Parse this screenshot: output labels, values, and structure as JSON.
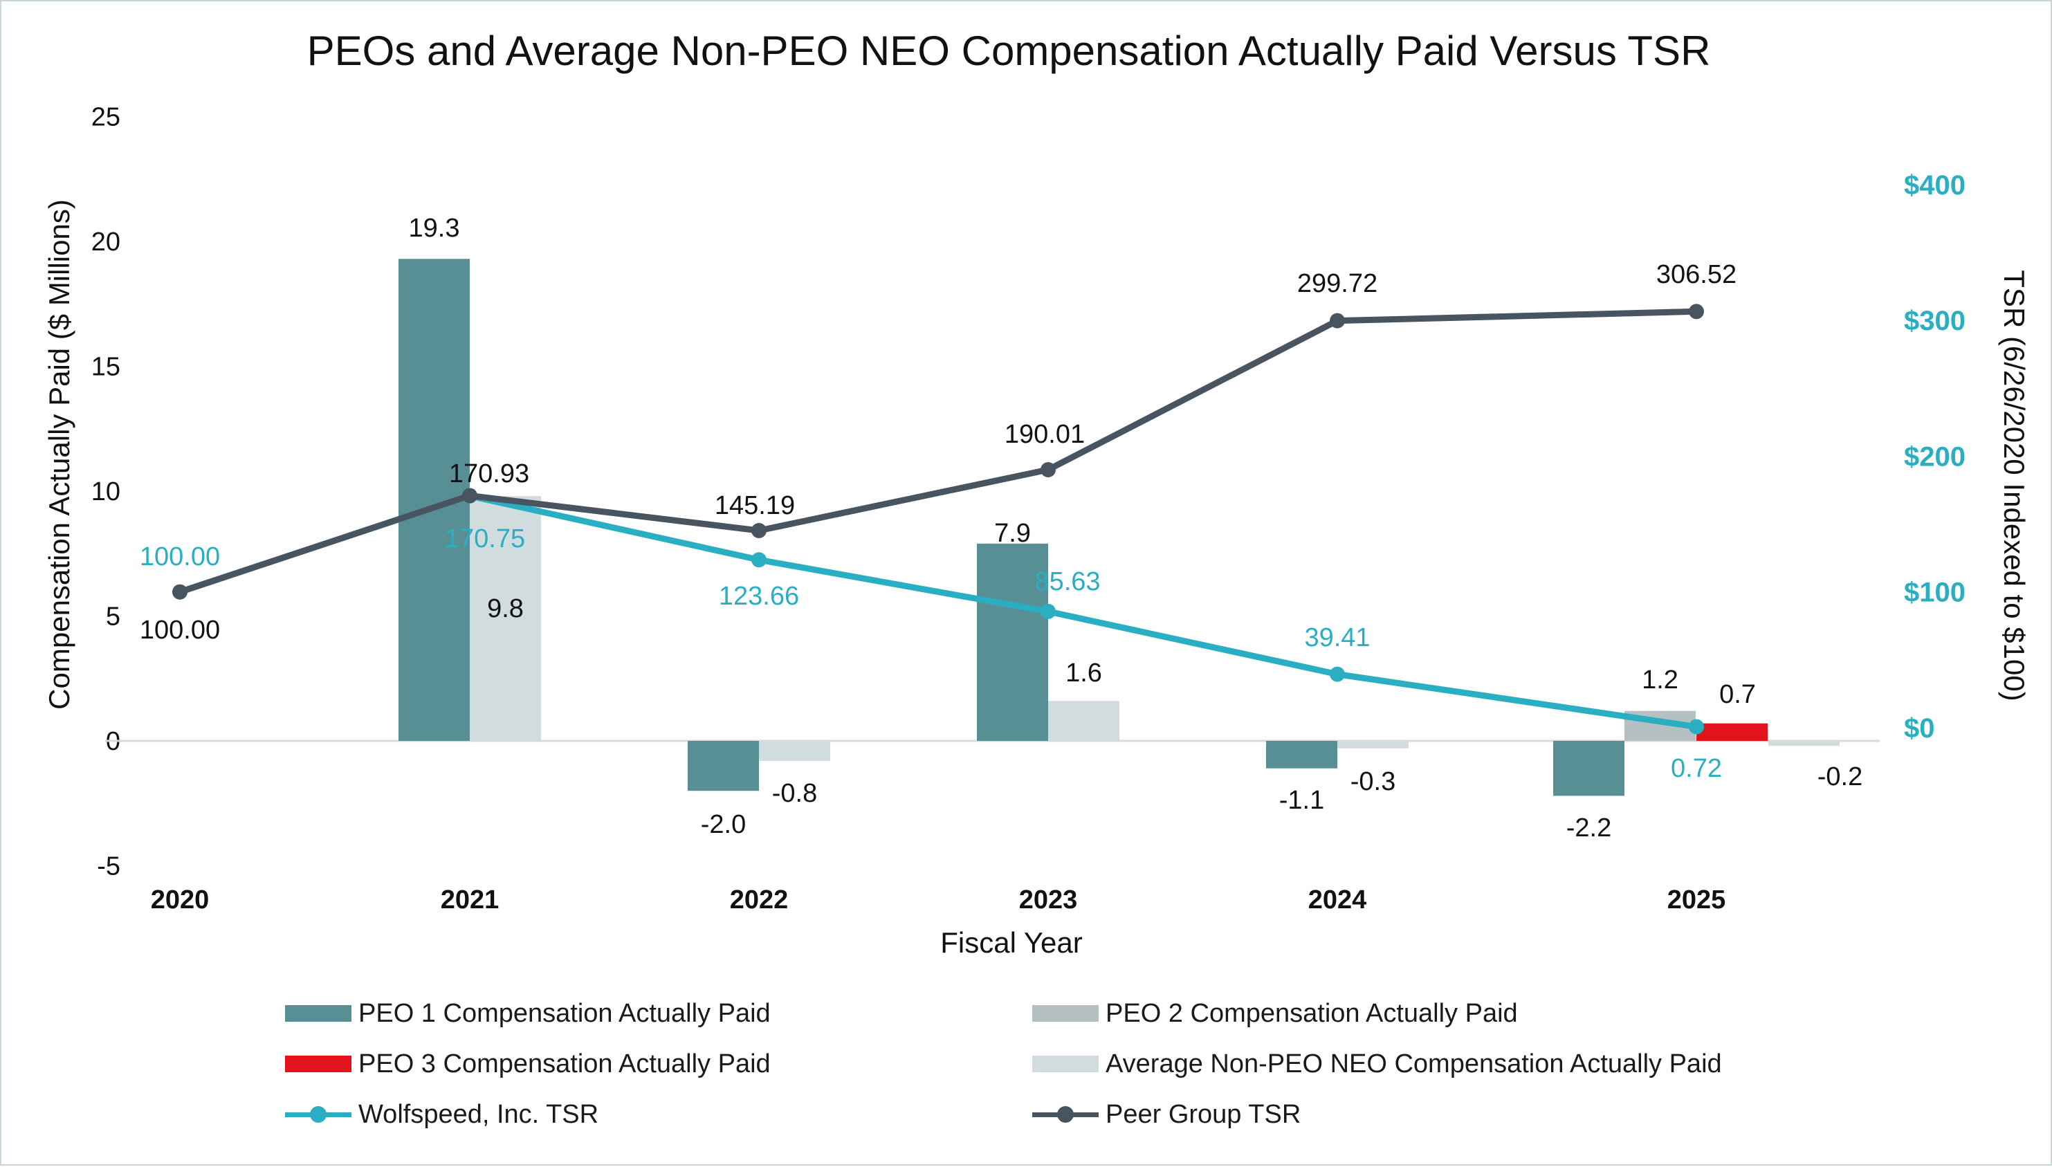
{
  "chart_data": {
    "type": "bar+line",
    "title": "PEOs and Average Non-PEO NEO Compensation Actually Paid Versus TSR",
    "xlabel": "Fiscal Year",
    "ylabel_left": "Compensation Actually Paid ($ Millions)",
    "ylabel_right": "TSR (6/26/2020 Indexed to $100)",
    "ylim_left": [
      -5,
      25
    ],
    "yticks_left": [
      -5,
      0,
      5,
      10,
      15,
      20,
      25
    ],
    "ylim_right": [
      0,
      400
    ],
    "yticks_right": [
      {
        "value": 0,
        "label": "$0"
      },
      {
        "value": 100,
        "label": "$100"
      },
      {
        "value": 200,
        "label": "$200"
      },
      {
        "value": 300,
        "label": "$300"
      },
      {
        "value": 400,
        "label": "$400"
      }
    ],
    "categories": [
      "2020",
      "2021",
      "2022",
      "2023",
      "2024",
      "2025"
    ],
    "bar_series": [
      {
        "name": "PEO 1 Compensation Actually Paid",
        "color": "#578f94",
        "values": [
          null,
          19.3,
          -2.0,
          7.9,
          -1.1,
          -2.2
        ],
        "labels": [
          null,
          "19.3",
          "-2.0",
          "7.9",
          "-1.1",
          "-2.2"
        ]
      },
      {
        "name": "PEO 2 Compensation Actually Paid",
        "color": "#b5c0c2",
        "values": [
          null,
          null,
          null,
          null,
          null,
          1.2
        ],
        "labels": [
          null,
          null,
          null,
          null,
          null,
          "1.2"
        ]
      },
      {
        "name": "PEO 3 Compensation Actually Paid",
        "color": "#e3131b",
        "values": [
          null,
          null,
          null,
          null,
          null,
          0.7
        ],
        "labels": [
          null,
          null,
          null,
          null,
          null,
          "0.7"
        ]
      },
      {
        "name": "Average Non-PEO NEO Compensation Actually Paid",
        "color": "#d0dcde",
        "values": [
          null,
          9.8,
          -0.8,
          1.6,
          -0.3,
          -0.2
        ],
        "labels": [
          null,
          "9.8",
          "-0.8",
          "1.6",
          "-0.3",
          "-0.2"
        ]
      }
    ],
    "line_series": [
      {
        "name": "Wolfspeed, Inc. TSR",
        "color": "#2aaec2",
        "values": [
          100.0,
          170.75,
          123.66,
          85.63,
          39.41,
          0.72
        ],
        "labels": [
          "100.00",
          "170.75",
          "123.66",
          "85.63",
          "39.41",
          "0.72"
        ]
      },
      {
        "name": "Peer Group TSR",
        "color": "#485460",
        "values": [
          100.0,
          170.93,
          145.19,
          190.01,
          299.72,
          306.52
        ],
        "labels": [
          "100.00",
          "170.93",
          "145.19",
          "190.01",
          "299.72",
          "306.52"
        ]
      }
    ]
  },
  "legend": {
    "peo1": "PEO 1 Compensation Actually Paid",
    "peo2": "PEO 2 Compensation Actually Paid",
    "peo3": "PEO 3 Compensation Actually Paid",
    "avg": "Average Non-PEO NEO Compensation Actually Paid",
    "wolf": "Wolfspeed, Inc. TSR",
    "peer": "Peer Group TSR"
  },
  "colors": {
    "peo1": "#578f94",
    "peo2": "#b5c0c2",
    "peo3": "#e3131b",
    "avg": "#d0dcde",
    "wolf": "#2aaec2",
    "peer": "#485460",
    "axis": "#d9d9d9",
    "text": "#1a1a1a"
  }
}
